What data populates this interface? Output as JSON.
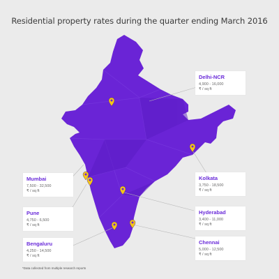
{
  "title": "Residential property rates during the quarter ending March 2016",
  "colors": {
    "map_fill": "#6a24d6",
    "marker": "#f5c518",
    "city_label": "#6a2bd9",
    "background": "#ebebeb"
  },
  "cities": [
    {
      "name": "Delhi-NCR",
      "range": "4,900 - 16,000",
      "unit": "₹ / sq ft"
    },
    {
      "name": "Kolkata",
      "range": "3,750 - 18,500",
      "unit": "₹ / sq ft"
    },
    {
      "name": "Mumbai",
      "range": "7,500 - 32,500",
      "unit": "₹ / sq ft"
    },
    {
      "name": "Pune",
      "range": "4,750 - 6,500",
      "unit": "₹ / sq ft"
    },
    {
      "name": "Hyderabad",
      "range": "3,400 - 11,000",
      "unit": "₹ / sq ft"
    },
    {
      "name": "Bengaluru",
      "range": "4,250 - 14,500",
      "unit": "₹ / sq ft"
    },
    {
      "name": "Chennai",
      "range": "5,000 - 12,500",
      "unit": "₹ / sq ft"
    }
  ],
  "footnote": "*Data collected from multiple research reports"
}
